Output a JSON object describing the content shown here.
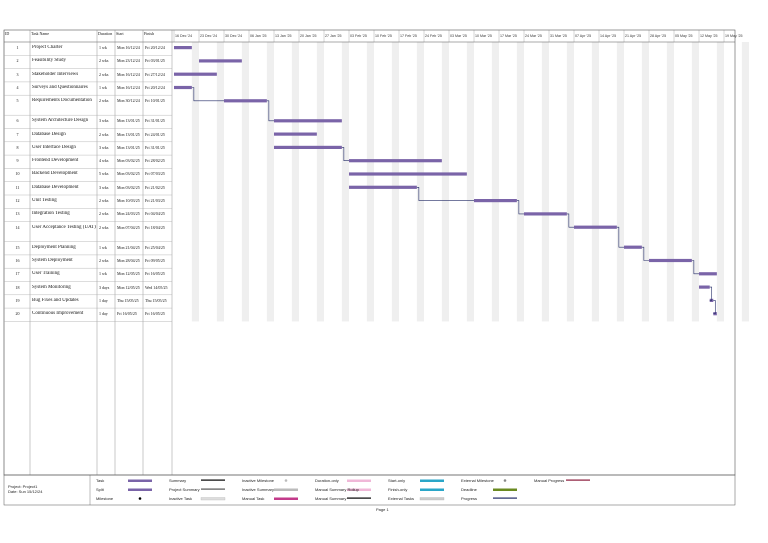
{
  "table": {
    "headers": [
      "ID",
      "Task Name",
      "Duration",
      "Start",
      "Finish"
    ],
    "rows": [
      [
        "1",
        "Project Charter",
        "1 wk",
        "Mon 16/12/24",
        "Fri 20/12/24"
      ],
      [
        "2",
        "Feasibility Study",
        "2 wks",
        "Mon 23/12/24",
        "Fri 03/01/25"
      ],
      [
        "3",
        "Stakeholder Interviews",
        "2 wks",
        "Mon 16/12/24",
        "Fri 27/12/24"
      ],
      [
        "4",
        "Surveys and Questionnaires",
        "1 wk",
        "Mon 16/12/24",
        "Fri 20/12/24"
      ],
      [
        "5",
        "Requirements Documentation",
        "2 wks",
        "Mon 30/12/24",
        "Fri 10/01/25"
      ],
      [
        "6",
        "System Architecture Design",
        "3 wks",
        "Mon 13/01/25",
        "Fri 31/01/25"
      ],
      [
        "7",
        "Database Design",
        "2 wks",
        "Mon 13/01/25",
        "Fri 24/01/25"
      ],
      [
        "8",
        "User Interface Design",
        "3 wks",
        "Mon 13/01/25",
        "Fri 31/01/25"
      ],
      [
        "9",
        "Frontend Development",
        "4 wks",
        "Mon 03/02/25",
        "Fri 28/02/25"
      ],
      [
        "10",
        "Backend Development",
        "5 wks",
        "Mon 03/02/25",
        "Fri 07/03/25"
      ],
      [
        "11",
        "Database Development",
        "3 wks",
        "Mon 03/02/25",
        "Fri 21/02/25"
      ],
      [
        "12",
        "Unit Testing",
        "2 wks",
        "Mon 10/03/25",
        "Fri 21/03/25"
      ],
      [
        "13",
        "Integration Testing",
        "2 wks",
        "Mon 24/03/25",
        "Fri 04/04/25"
      ],
      [
        "14",
        "User Acceptance Testing (UAT)",
        "2 wks",
        "Mon 07/04/25",
        "Fri 18/04/25"
      ],
      [
        "15",
        "Deployment Planning",
        "1 wk",
        "Mon 21/04/25",
        "Fri 25/04/25"
      ],
      [
        "16",
        "System Deployment",
        "2 wks",
        "Mon 28/04/25",
        "Fri 09/05/25"
      ],
      [
        "17",
        "User Training",
        "1 wk",
        "Mon 12/05/25",
        "Fri 16/05/25"
      ],
      [
        "18",
        "System Monitoring",
        "3 days",
        "Mon 12/05/25",
        "Wed 14/05/25"
      ],
      [
        "19",
        "Bug Fixes and Updates",
        "1 day",
        "Thu 15/05/25",
        "Thu 15/05/25"
      ],
      [
        "20",
        "Continuous Improvement",
        "1 day",
        "Fri 16/05/25",
        "Fri 16/05/25"
      ]
    ]
  },
  "timescale": [
    "16 Dec '24",
    "23 Dec '24",
    "30 Dec '24",
    "06 Jan '25",
    "13 Jan '25",
    "20 Jan '25",
    "27 Jan '25",
    "03 Feb '25",
    "10 Feb '25",
    "17 Feb '25",
    "24 Feb '25",
    "03 Mar '25",
    "10 Mar '25",
    "17 Mar '25",
    "24 Mar '25",
    "31 Mar '25",
    "07 Apr '25",
    "14 Apr '25",
    "21 Apr '25",
    "28 Apr '25",
    "05 May '25",
    "12 May '25",
    "19 May '25"
  ],
  "footer": {
    "project": "Project: Project1",
    "date": "Date: Sun 15/12/24",
    "page": "Page 1"
  },
  "legend": [
    "Task",
    "Split",
    "Milestone",
    "Summary",
    "Project Summary",
    "Inactive Task",
    "Inactive Milestone",
    "Inactive Summary",
    "Manual Task",
    "Duration-only",
    "Manual Summary Rollup",
    "Manual Summary",
    "Start-only",
    "Finish-only",
    "External Tasks",
    "External Milestone",
    "Deadline",
    "Progress",
    "Manual Progress"
  ]
}
